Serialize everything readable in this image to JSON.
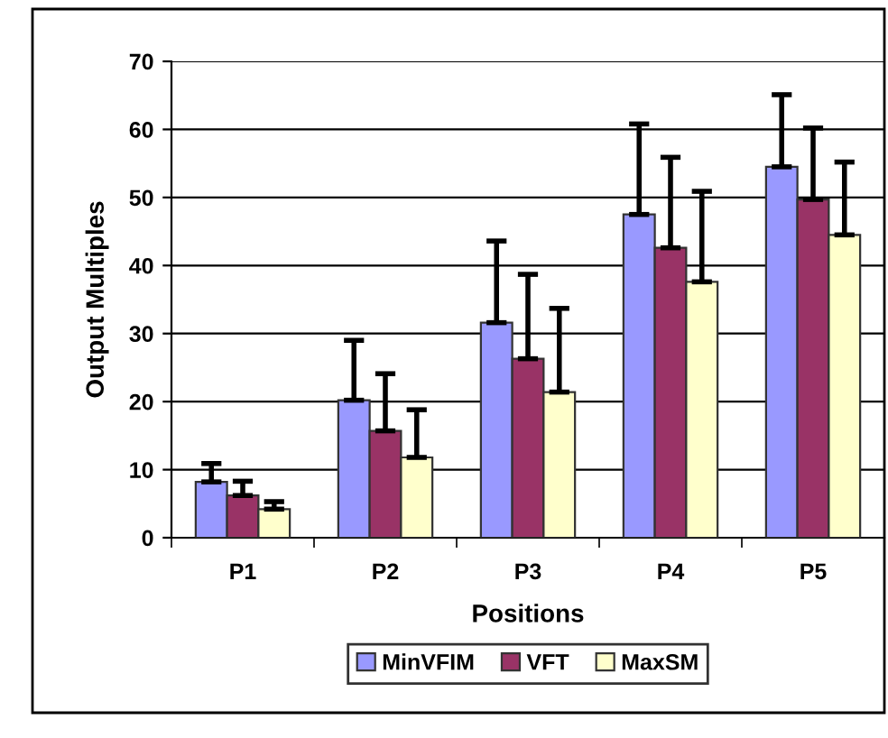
{
  "chart_data": {
    "type": "bar",
    "xlabel": "Positions",
    "ylabel": "Output Multiples",
    "categories": [
      "P1",
      "P2",
      "P3",
      "P4",
      "P5"
    ],
    "series": [
      {
        "name": "MinVFIM",
        "color": "#9999ff",
        "values": [
          8.2,
          20.2,
          31.6,
          47.5,
          54.5
        ],
        "errors": [
          [
            8.2,
            10.9
          ],
          [
            20.2,
            29.0
          ],
          [
            31.6,
            43.6
          ],
          [
            47.5,
            60.8
          ],
          [
            54.5,
            65.1
          ]
        ]
      },
      {
        "name": "VFT",
        "color": "#993366",
        "values": [
          6.2,
          15.7,
          26.3,
          42.6,
          49.7
        ],
        "errors": [
          [
            6.2,
            8.3
          ],
          [
            15.7,
            24.1
          ],
          [
            26.3,
            38.7
          ],
          [
            42.6,
            55.9
          ],
          [
            49.7,
            60.2
          ]
        ]
      },
      {
        "name": "MaxSM",
        "color": "#ffffcc",
        "values": [
          4.2,
          11.8,
          21.4,
          37.6,
          44.5
        ],
        "errors": [
          [
            4.2,
            5.3
          ],
          [
            11.8,
            18.8
          ],
          [
            21.4,
            33.7
          ],
          [
            37.6,
            50.9
          ],
          [
            44.5,
            55.2
          ]
        ]
      }
    ],
    "ylim": [
      0,
      70
    ],
    "yticks": [
      0,
      10,
      20,
      30,
      40,
      50,
      60,
      70
    ],
    "grid": "y",
    "legend": "bottom"
  }
}
